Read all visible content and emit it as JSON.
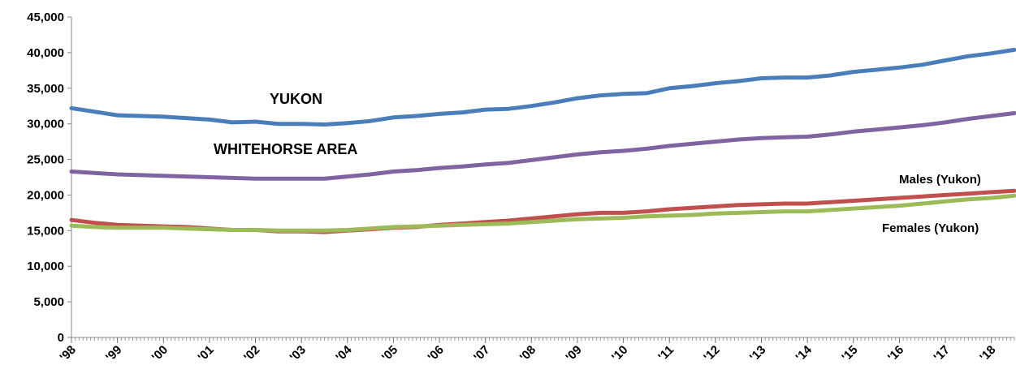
{
  "chart_data": {
    "type": "line",
    "title": "",
    "xlabel": "",
    "ylabel": "",
    "ylim": [
      0,
      45000
    ],
    "xlim": [
      1998.0,
      2018.5
    ],
    "y_ticks": [
      "0",
      "5,000",
      "10,000",
      "15,000",
      "20,000",
      "25,000",
      "30,000",
      "35,000",
      "40,000",
      "45,000"
    ],
    "x_ticks": [
      "'98",
      "'99",
      "'00",
      "'01",
      "'02",
      "'03",
      "'04",
      "'05",
      "'06",
      "'07",
      "'08",
      "'09",
      "'10",
      "'11",
      "'12",
      "'13",
      "'14",
      "'15",
      "'16",
      "'17",
      "'18"
    ],
    "grid": false,
    "legend": "none (series labeled directly on the plot)",
    "series": [
      {
        "name": "YUKON",
        "color": "#4A7EBB",
        "x": [
          1998.0,
          1998.5,
          1999.0,
          1999.5,
          2000.0,
          2000.5,
          2001.0,
          2001.5,
          2002.0,
          2002.5,
          2003.0,
          2003.5,
          2004.0,
          2004.5,
          2005.0,
          2005.5,
          2006.0,
          2006.5,
          2007.0,
          2007.5,
          2008.0,
          2008.5,
          2009.0,
          2009.5,
          2010.0,
          2010.5,
          2011.0,
          2011.5,
          2012.0,
          2012.5,
          2013.0,
          2013.5,
          2014.0,
          2014.5,
          2015.0,
          2015.5,
          2016.0,
          2016.5,
          2017.0,
          2017.5,
          2018.0,
          2018.5
        ],
        "values": [
          32200,
          31700,
          31200,
          31100,
          31000,
          30800,
          30600,
          30200,
          30300,
          30000,
          30000,
          29900,
          30100,
          30400,
          30900,
          31100,
          31400,
          31600,
          32000,
          32100,
          32500,
          33000,
          33600,
          34000,
          34200,
          34300,
          35000,
          35300,
          35700,
          36000,
          36400,
          36500,
          36500,
          36800,
          37300,
          37600,
          37900,
          38300,
          38900,
          39500,
          39900,
          40400
        ]
      },
      {
        "name": "WHITEHORSE AREA",
        "color": "#8064A2",
        "x": [
          1998.0,
          1998.5,
          1999.0,
          1999.5,
          2000.0,
          2000.5,
          2001.0,
          2001.5,
          2002.0,
          2002.5,
          2003.0,
          2003.5,
          2004.0,
          2004.5,
          2005.0,
          2005.5,
          2006.0,
          2006.5,
          2007.0,
          2007.5,
          2008.0,
          2008.5,
          2009.0,
          2009.5,
          2010.0,
          2010.5,
          2011.0,
          2011.5,
          2012.0,
          2012.5,
          2013.0,
          2013.5,
          2014.0,
          2014.5,
          2015.0,
          2015.5,
          2016.0,
          2016.5,
          2017.0,
          2017.5,
          2018.0,
          2018.5
        ],
        "values": [
          23300,
          23100,
          22900,
          22800,
          22700,
          22600,
          22500,
          22400,
          22300,
          22300,
          22300,
          22300,
          22600,
          22900,
          23300,
          23500,
          23800,
          24000,
          24300,
          24500,
          24900,
          25300,
          25700,
          26000,
          26200,
          26500,
          26900,
          27200,
          27500,
          27800,
          28000,
          28100,
          28200,
          28500,
          28900,
          29200,
          29500,
          29800,
          30200,
          30700,
          31100,
          31500
        ]
      },
      {
        "name": "Males (Yukon)",
        "color": "#C0504D",
        "x": [
          1998.0,
          1998.5,
          1999.0,
          1999.5,
          2000.0,
          2000.5,
          2001.0,
          2001.5,
          2002.0,
          2002.5,
          2003.0,
          2003.5,
          2004.0,
          2004.5,
          2005.0,
          2005.5,
          2006.0,
          2006.5,
          2007.0,
          2007.5,
          2008.0,
          2008.5,
          2009.0,
          2009.5,
          2010.0,
          2010.5,
          2011.0,
          2011.5,
          2012.0,
          2012.5,
          2013.0,
          2013.5,
          2014.0,
          2014.5,
          2015.0,
          2015.5,
          2016.0,
          2016.5,
          2017.0,
          2017.5,
          2018.0,
          2018.5
        ],
        "values": [
          16500,
          16100,
          15800,
          15700,
          15600,
          15500,
          15300,
          15100,
          15100,
          14900,
          14900,
          14800,
          15000,
          15200,
          15400,
          15500,
          15800,
          16000,
          16200,
          16400,
          16700,
          17000,
          17300,
          17500,
          17500,
          17700,
          18000,
          18200,
          18400,
          18600,
          18700,
          18800,
          18800,
          19000,
          19200,
          19400,
          19600,
          19800,
          20000,
          20200,
          20400,
          20600
        ]
      },
      {
        "name": "Females (Yukon)",
        "color": "#9BBB59",
        "x": [
          1998.0,
          1998.5,
          1999.0,
          1999.5,
          2000.0,
          2000.5,
          2001.0,
          2001.5,
          2002.0,
          2002.5,
          2003.0,
          2003.5,
          2004.0,
          2004.5,
          2005.0,
          2005.5,
          2006.0,
          2006.5,
          2007.0,
          2007.5,
          2008.0,
          2008.5,
          2009.0,
          2009.5,
          2010.0,
          2010.5,
          2011.0,
          2011.5,
          2012.0,
          2012.5,
          2013.0,
          2013.5,
          2014.0,
          2014.5,
          2015.0,
          2015.5,
          2016.0,
          2016.5,
          2017.0,
          2017.5,
          2018.0,
          2018.5
        ],
        "values": [
          15700,
          15500,
          15400,
          15400,
          15400,
          15300,
          15200,
          15100,
          15100,
          15000,
          15000,
          15000,
          15100,
          15300,
          15500,
          15600,
          15700,
          15800,
          15900,
          16000,
          16200,
          16400,
          16600,
          16700,
          16800,
          17000,
          17100,
          17200,
          17400,
          17500,
          17600,
          17700,
          17700,
          17900,
          18100,
          18300,
          18500,
          18800,
          19100,
          19400,
          19600,
          19900
        ]
      }
    ]
  },
  "labels": {
    "yukon": "YUKON",
    "whitehorse": "WHITEHORSE AREA",
    "males": "Males (Yukon)",
    "females": "Females (Yukon)"
  }
}
